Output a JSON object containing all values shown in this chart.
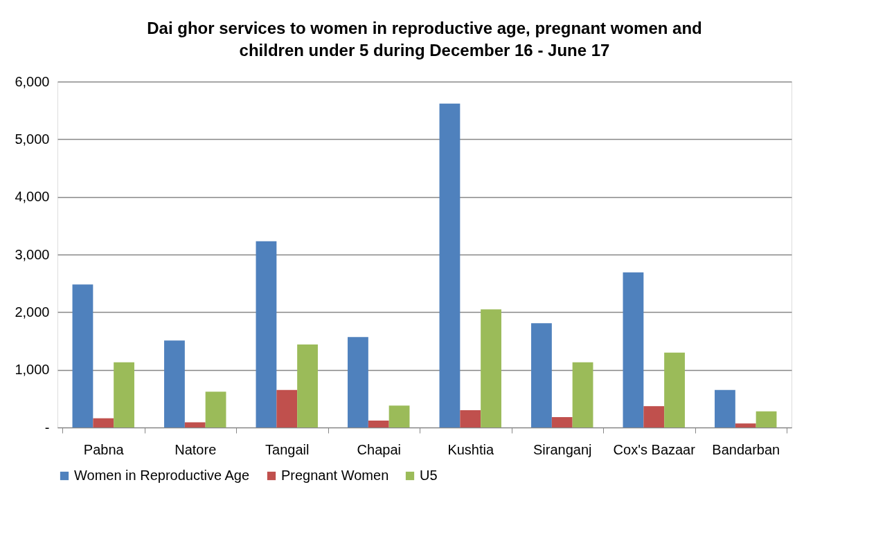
{
  "chart_data": {
    "type": "bar",
    "title": "Dai ghor services to women in reproductive age, pregnant women and children under 5 during December 16 - June 17",
    "categories": [
      "Pabna",
      "Natore",
      "Tangail",
      "Chapai",
      "Kushtia",
      "Siranganj",
      "Cox's Bazaar",
      "Bandarban"
    ],
    "series": [
      {
        "name": "Women in Reproductive Age",
        "color": "#4f81bd",
        "values": [
          2480,
          1510,
          3230,
          1570,
          5620,
          1810,
          2690,
          650
        ]
      },
      {
        "name": "Pregnant Women",
        "color": "#c0504d",
        "values": [
          160,
          90,
          650,
          120,
          300,
          180,
          370,
          70
        ]
      },
      {
        "name": "U5",
        "color": "#9bbb59",
        "values": [
          1130,
          620,
          1440,
          380,
          2050,
          1130,
          1300,
          280
        ]
      }
    ],
    "ylim": [
      0,
      6000
    ],
    "yticks": [
      {
        "value": 0,
        "label": "-"
      },
      {
        "value": 1000,
        "label": "1,000"
      },
      {
        "value": 2000,
        "label": "2,000"
      },
      {
        "value": 3000,
        "label": "3,000"
      },
      {
        "value": 4000,
        "label": "4,000"
      },
      {
        "value": 5000,
        "label": "5,000"
      },
      {
        "value": 6000,
        "label": "6,000"
      }
    ],
    "grid": "y",
    "legend": "bottom"
  }
}
